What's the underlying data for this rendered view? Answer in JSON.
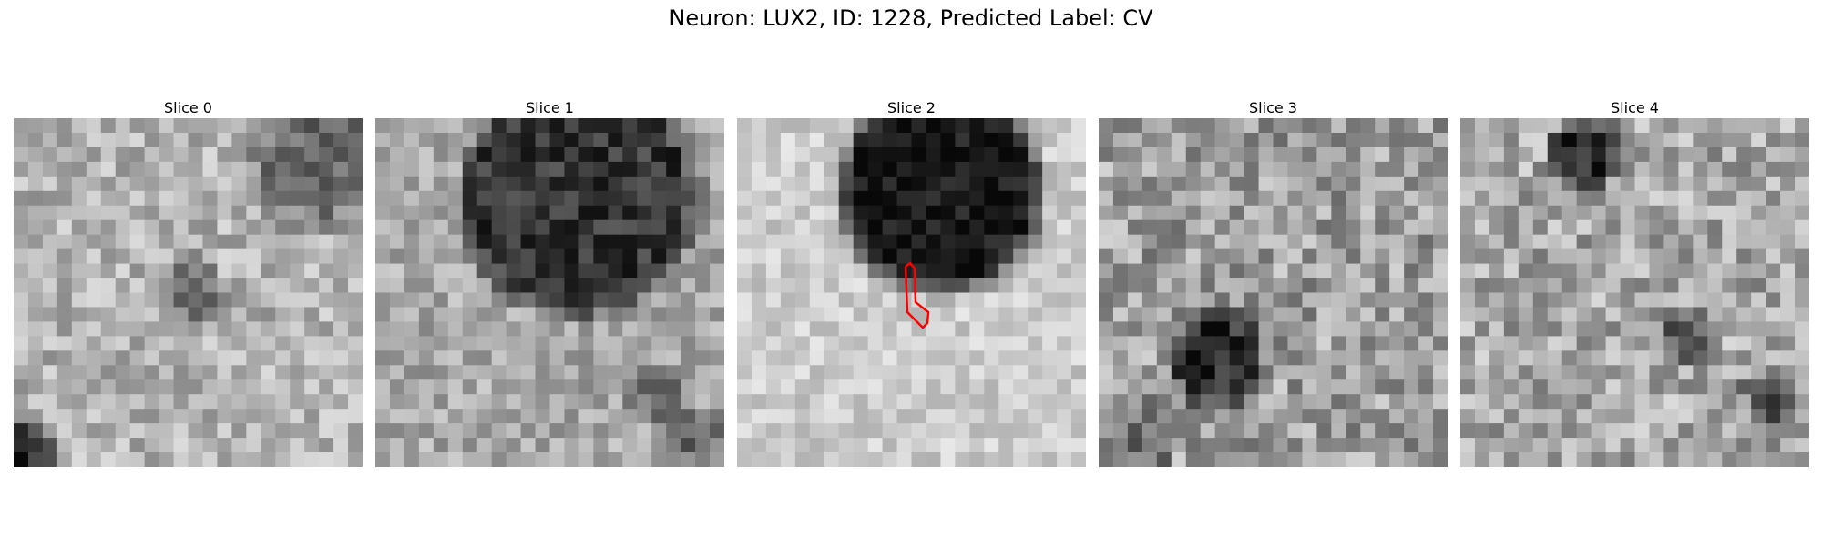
{
  "figure": {
    "title": "Neuron: LUX2, ID: 1228, Predicted Label: CV"
  },
  "colors": {
    "background": "#ffffff",
    "roi_outline": "#ff0000",
    "colormap": "grayscale"
  },
  "panels": [
    {
      "label": "Slice 0"
    },
    {
      "label": "Slice 1"
    },
    {
      "label": "Slice 2"
    },
    {
      "label": "Slice 3"
    },
    {
      "label": "Slice 4"
    }
  ]
}
